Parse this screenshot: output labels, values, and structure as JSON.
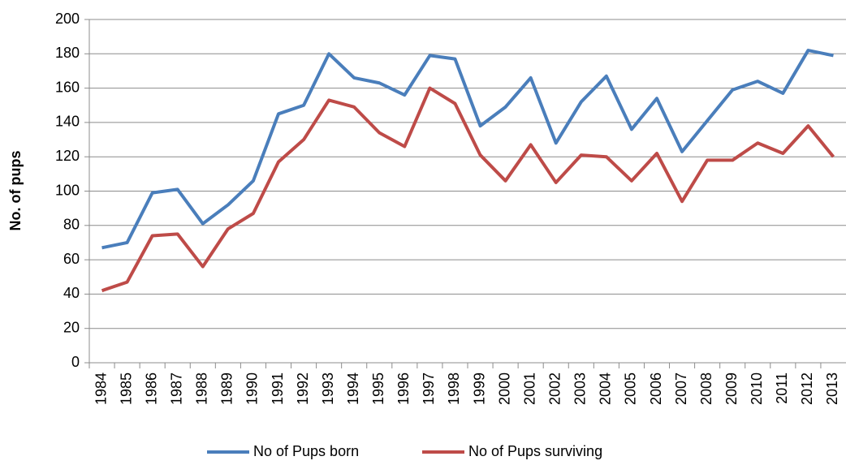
{
  "chart_data": {
    "type": "line",
    "y_label": "No. of pups",
    "categories": [
      "1984",
      "1985",
      "1986",
      "1987",
      "1988",
      "1989",
      "1990",
      "1991",
      "1992",
      "1993",
      "1994",
      "1995",
      "1996",
      "1997",
      "1998",
      "1999",
      "2000",
      "2001",
      "2002",
      "2003",
      "2004",
      "2005",
      "2006",
      "2007",
      "2008",
      "2009",
      "2010",
      "2011",
      "2012",
      "2013"
    ],
    "series": [
      {
        "name": "No of Pups born",
        "color": "#4a7ebb",
        "values": [
          67,
          70,
          99,
          101,
          81,
          92,
          106,
          145,
          150,
          180,
          166,
          163,
          156,
          179,
          177,
          138,
          149,
          166,
          128,
          152,
          167,
          136,
          154,
          123,
          141,
          159,
          164,
          157,
          182,
          179
        ]
      },
      {
        "name": "No of Pups surviving",
        "color": "#be4b48",
        "values": [
          42,
          47,
          74,
          75,
          56,
          78,
          87,
          117,
          130,
          153,
          149,
          134,
          126,
          160,
          151,
          121,
          106,
          127,
          105,
          121,
          120,
          106,
          122,
          94,
          118,
          118,
          128,
          122,
          138,
          120
        ]
      }
    ],
    "ylim": [
      0,
      200
    ],
    "yticks": [
      0,
      20,
      40,
      60,
      80,
      100,
      120,
      140,
      160,
      180,
      200
    ],
    "grid": true,
    "legend": "bottom"
  }
}
